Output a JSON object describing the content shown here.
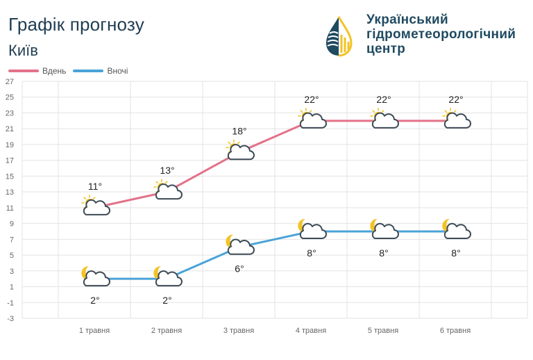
{
  "header": {
    "title": "Графік прогнозу",
    "city": "Київ"
  },
  "logo": {
    "line1": "Український",
    "line2": "гідрометеорологічний",
    "line3": "центр"
  },
  "colors": {
    "day": "#e37289",
    "night": "#4aa3d8",
    "grid": "#e3e3e3",
    "cloud_stroke": "#3c4a56",
    "sun": "#f3c326",
    "moon": "#f3c326"
  },
  "chart_data": {
    "type": "line",
    "categories": [
      "1 травня",
      "2 травня",
      "3 травня",
      "4 травня",
      "5 травня",
      "6 травня"
    ],
    "series": [
      {
        "name": "Вдень",
        "values": [
          11,
          13,
          18,
          22,
          22,
          22
        ],
        "labels": [
          "11°",
          "13°",
          "18°",
          "22°",
          "22°",
          "22°"
        ],
        "icon": "sun-cloud-icon",
        "label_position": "above"
      },
      {
        "name": "Вночі",
        "values": [
          2,
          2,
          6,
          8,
          8,
          8
        ],
        "labels": [
          "2°",
          "2°",
          "6°",
          "8°",
          "8°",
          "8°"
        ],
        "icon": "moon-cloud-icon",
        "label_position": "below"
      }
    ],
    "ylim": [
      -3,
      27
    ],
    "yticks": [
      -3,
      -1,
      1,
      3,
      5,
      7,
      9,
      11,
      13,
      15,
      17,
      19,
      21,
      23,
      25,
      27
    ],
    "grid": true,
    "legend": "top-left"
  }
}
